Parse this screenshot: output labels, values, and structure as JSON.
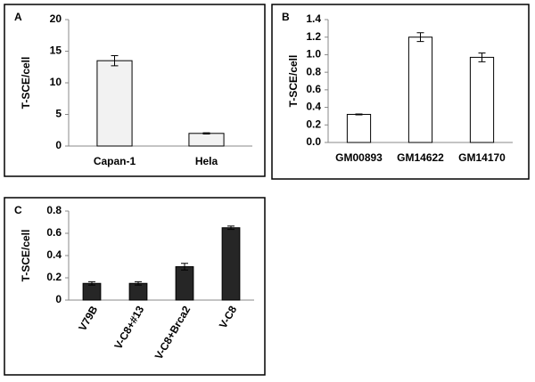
{
  "chart_data": [
    {
      "type": "bar",
      "panel": "A",
      "y_label": "T-SCE/cell",
      "categories": [
        "Capan-1",
        "Hela"
      ],
      "values": [
        13.5,
        2.0
      ],
      "errors": [
        0.8,
        0.1
      ],
      "color": "#f2f2f2",
      "ylim": [
        0,
        20
      ],
      "yticks": [
        0,
        5,
        10,
        15,
        20
      ]
    },
    {
      "type": "bar",
      "panel": "B",
      "y_label": "T-SCE/cell",
      "categories": [
        "GM00893",
        "GM14622",
        "GM14170"
      ],
      "values": [
        0.32,
        1.2,
        0.97
      ],
      "errors": [
        0.005,
        0.05,
        0.05
      ],
      "color": "#ffffff",
      "ylim": [
        0,
        1.4
      ],
      "yticks": [
        {
          "value": 0,
          "label": "0.0"
        },
        0.2,
        0.4,
        0.6,
        0.8,
        {
          "value": 1,
          "label": "1.0"
        },
        1.2,
        1.4
      ]
    },
    {
      "type": "bar",
      "panel": "C",
      "y_label": "T-SCE/cell",
      "categories": [
        "V79B",
        "V-C8+#13",
        "V-C8+Brca2",
        "V-C8"
      ],
      "values": [
        0.15,
        0.15,
        0.3,
        0.65
      ],
      "errors": [
        0.015,
        0.015,
        0.03,
        0.015
      ],
      "color": "#262626",
      "ylim": [
        0,
        0.8
      ],
      "yticks": [
        0,
        0.2,
        0.4,
        0.6,
        0.8
      ],
      "rotate_labels": true
    }
  ]
}
